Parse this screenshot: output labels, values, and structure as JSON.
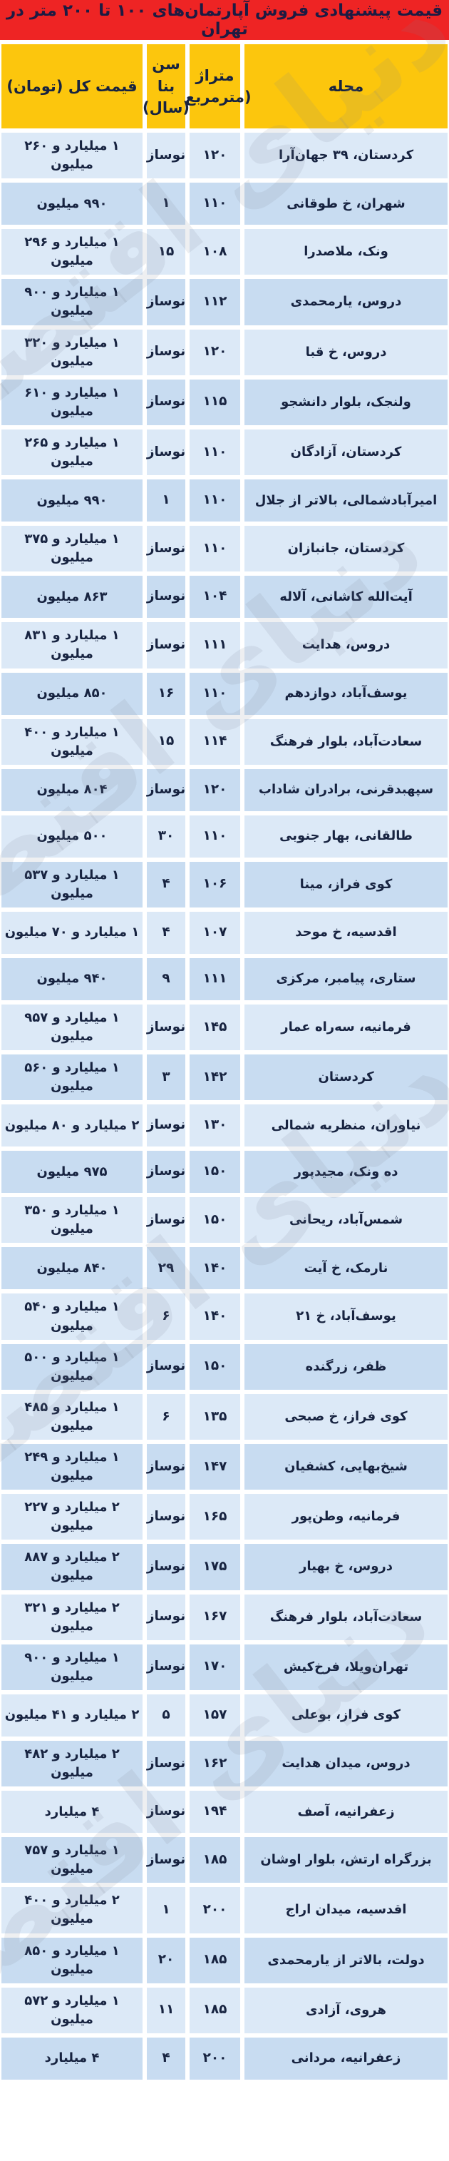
{
  "title": "قیمت پیشنهادی فروش آپارتمان‌های ۱۰۰ تا ۲۰۰ متر در تهران",
  "watermark_text": "دنیای اقتصاد",
  "colors": {
    "title_bg": "#ee2424",
    "header_bg": "#fcc60d",
    "row_light": "#dce9f7",
    "row_dark": "#c8dcf1",
    "text": "#172340",
    "title_text": "#1d1b42"
  },
  "header": {
    "neighborhood": "محله",
    "area_line1": "متراژ",
    "area_line2": "(مترمربع)",
    "age_line1": "سن بنا",
    "age_line2": "(سال)",
    "price": "قیمت کل (تومان)"
  },
  "chart_data": {
    "type": "table",
    "columns": [
      "محله",
      "متراژ (مترمربع)",
      "سن بنا (سال)",
      "قیمت کل (تومان)"
    ],
    "rows": [
      [
        "کردستان، ۳۹ جهان‌آرا",
        "۱۲۰",
        "نوساز",
        "۱ میلیارد و ۲۶۰ میلیون"
      ],
      [
        "شهران، خ طوقانی",
        "۱۱۰",
        "۱",
        "۹۹۰ میلیون"
      ],
      [
        "ونک، ملاصدرا",
        "۱۰۸",
        "۱۵",
        "۱ میلیارد و ۲۹۶ میلیون"
      ],
      [
        "دروس، یارمحمدی",
        "۱۱۲",
        "نوساز",
        "۱ میلیارد و ۹۰۰ میلیون"
      ],
      [
        "دروس، خ قبا",
        "۱۲۰",
        "نوساز",
        "۱ میلیارد و ۳۲۰ میلیون"
      ],
      [
        "ولنجک، بلوار دانشجو",
        "۱۱۵",
        "نوساز",
        "۱ میلیارد و ۶۱۰ میلیون"
      ],
      [
        "کردستان، آزادگان",
        "۱۱۰",
        "نوساز",
        "۱ میلیارد و ۲۶۵ میلیون"
      ],
      [
        "امیرآبادشمالی، بالاتر از جلال",
        "۱۱۰",
        "۱",
        "۹۹۰ میلیون"
      ],
      [
        "کردستان، جانبازان",
        "۱۱۰",
        "نوساز",
        "۱ میلیارد و ۳۷۵ میلیون"
      ],
      [
        "آیت‌الله کاشانی، آلاله",
        "۱۰۴",
        "نوساز",
        "۸۶۳ میلیون"
      ],
      [
        "دروس، هدایت",
        "۱۱۱",
        "نوساز",
        "۱ میلیارد و ۸۳۱ میلیون"
      ],
      [
        "یوسف‌آباد، دوازدهم",
        "۱۱۰",
        "۱۶",
        "۸۵۰ میلیون"
      ],
      [
        "سعادت‌آباد، بلوار فرهنگ",
        "۱۱۴",
        "۱۵",
        "۱ میلیارد و ۴۰۰ میلیون"
      ],
      [
        "سپهبدقرنی، برادران شاداب",
        "۱۲۰",
        "نوساز",
        "۸۰۴ میلیون"
      ],
      [
        "طالقانی، بهار جنوبی",
        "۱۱۰",
        "۳۰",
        "۵۰۰ میلیون"
      ],
      [
        "کوی فراز، مینا",
        "۱۰۶",
        "۴",
        "۱ میلیارد و ۵۳۷ میلیون"
      ],
      [
        "اقدسیه، خ موحد",
        "۱۰۷",
        "۴",
        "۱ میلیارد و ۷۰ میلیون"
      ],
      [
        "ستاری، پیامبر، مرکزی",
        "۱۱۱",
        "۹",
        "۹۴۰ میلیون"
      ],
      [
        "فرمانیه، سه‌راه عمار",
        "۱۴۵",
        "نوساز",
        "۱ میلیارد و ۹۵۷ میلیون"
      ],
      [
        "کردستان",
        "۱۴۲",
        "۳",
        "۱ میلیارد و ۵۶۰ میلیون"
      ],
      [
        "نیاوران، منظریه شمالی",
        "۱۳۰",
        "نوساز",
        "۲ میلیارد و ۸۰ میلیون"
      ],
      [
        "ده ونک، مجیدپور",
        "۱۵۰",
        "نوساز",
        "۹۷۵ میلیون"
      ],
      [
        "شمس‌آباد، ریحانی",
        "۱۵۰",
        "نوساز",
        "۱ میلیارد و ۳۵۰ میلیون"
      ],
      [
        "نارمک، خ آیت",
        "۱۴۰",
        "۲۹",
        "۸۴۰ میلیون"
      ],
      [
        "یوسف‌آباد، خ ۲۱",
        "۱۴۰",
        "۶",
        "۱ میلیارد و ۵۴۰ میلیون"
      ],
      [
        "ظفر، زرگنده",
        "۱۵۰",
        "نوساز",
        "۱ میلیارد و ۵۰۰ میلیون"
      ],
      [
        "کوی فراز، خ صبحی",
        "۱۳۵",
        "۶",
        "۱ میلیارد و ۴۸۵ میلیون"
      ],
      [
        "شیخ‌بهایی، کشفیان",
        "۱۴۷",
        "نوساز",
        "۱ میلیارد و ۲۴۹ میلیون"
      ],
      [
        "فرمانیه، وطن‌پور",
        "۱۶۵",
        "نوساز",
        "۲ میلیارد و ۲۲۷ میلیون"
      ],
      [
        "دروس، خ بهیار",
        "۱۷۵",
        "نوساز",
        "۲ میلیارد و ۸۸۷ میلیون"
      ],
      [
        "سعادت‌آباد، بلوار فرهنگ",
        "۱۶۷",
        "نوساز",
        "۲ میلیارد و ۳۲۱ میلیون"
      ],
      [
        "تهران‌ویلا، فرخ‌کیش",
        "۱۷۰",
        "نوساز",
        "۱ میلیارد و ۹۰۰ میلیون"
      ],
      [
        "کوی فراز، بوعلی",
        "۱۵۷",
        "۵",
        "۲ میلیارد و ۴۱ میلیون"
      ],
      [
        "دروس، میدان هدایت",
        "۱۶۲",
        "نوساز",
        "۲ میلیارد و ۴۸۲ میلیون"
      ],
      [
        "زعفرانیه، آصف",
        "۱۹۴",
        "نوساز",
        "۴ میلیارد"
      ],
      [
        "بزرگراه ارتش، بلوار اوشان",
        "۱۸۵",
        "نوساز",
        "۱ میلیارد و ۷۵۷ میلیون"
      ],
      [
        "اقدسیه، میدان اراج",
        "۲۰۰",
        "۱",
        "۲ میلیارد و ۴۰۰ میلیون"
      ],
      [
        "دولت، بالاتر از یارمحمدی",
        "۱۸۵",
        "۲۰",
        "۱ میلیارد و ۸۵۰ میلیون"
      ],
      [
        "هروی، آزادی",
        "۱۸۵",
        "۱۱",
        "۱ میلیارد و ۵۷۲ میلیون"
      ],
      [
        "زعفرانیه، مردانی",
        "۲۰۰",
        "۴",
        "۴ میلیارد"
      ]
    ]
  }
}
